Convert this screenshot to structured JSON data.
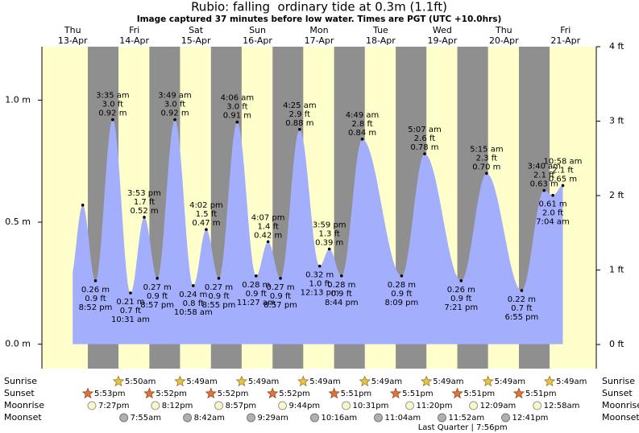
{
  "header": {
    "title": "Rubio: falling  ordinary tide at 0.3m (1.1ft)",
    "subtitle": "Image captured 37 minutes before low water. Times are PGT (UTC +10.0hrs)"
  },
  "chart_data": {
    "type": "tide",
    "ylim": [
      -0.1,
      1.219
    ],
    "yticks": [
      {
        "value": 0,
        "label": "0.0 m"
      },
      {
        "value": 0.5,
        "label": "0.5 m"
      },
      {
        "value": 1,
        "label": "1.0 m"
      }
    ],
    "y2lim": [
      -0.324,
      4.0
    ],
    "y2ticks": [
      {
        "value": 0,
        "label": "0 ft"
      },
      {
        "value": 1,
        "label": "1 ft"
      },
      {
        "value": 2,
        "label": "2 ft"
      },
      {
        "value": 3,
        "label": "3 ft"
      },
      {
        "value": 4,
        "label": "4 ft"
      }
    ],
    "colors": {
      "water": "#a3aefc",
      "day": "#ffffcc",
      "night": "#8f8f8f",
      "day_text": "#e00000"
    },
    "rows": {
      "sunrise": "Sunrise",
      "sunset": "Sunset",
      "moonrise": "Moonrise",
      "moonset": "Moonset"
    },
    "days": [
      {
        "weekday": "Thu",
        "date": "13-Apr",
        "sunrise": null,
        "sunset": "5:53pm",
        "moonrise": "7:27pm",
        "moonset": null,
        "tides": [
          {
            "height": 0.57
          },
          {
            "time": "8:52 pm",
            "height": 0.26,
            "height_label": "0.26 m",
            "feet_label": "0.9 ft"
          }
        ]
      },
      {
        "weekday": "Fri",
        "date": "14-Apr",
        "sunrise": "5:50am",
        "sunset": "5:52pm",
        "moonrise": "8:12pm",
        "moonset": "7:55am",
        "tides": [
          {
            "time": "3:35 am",
            "height": 0.92,
            "height_label": "0.92 m",
            "feet_label": "3.0 ft"
          },
          {
            "time": "10:31 am",
            "height": 0.21,
            "height_label": "0.21 m",
            "feet_label": "0.7 ft"
          },
          {
            "time": "3:53 pm",
            "height": 0.52,
            "height_label": "0.52 m",
            "feet_label": "1.7 ft"
          },
          {
            "time": "8:57 pm",
            "height": 0.27,
            "height_label": "0.27 m",
            "feet_label": "0.9 ft"
          }
        ]
      },
      {
        "weekday": "Sat",
        "date": "15-Apr",
        "sunrise": "5:49am",
        "sunset": "5:52pm",
        "moonrise": "8:57pm",
        "moonset": "8:42am",
        "tides": [
          {
            "time": "3:49 am",
            "height": 0.92,
            "height_label": "0.92 m",
            "feet_label": "3.0 ft"
          },
          {
            "time": "10:58 am",
            "height": 0.24,
            "height_label": "0.24 m",
            "feet_label": "0.8 ft"
          },
          {
            "time": "4:02 pm",
            "height": 0.47,
            "height_label": "0.47 m",
            "feet_label": "1.5 ft"
          },
          {
            "time": "8:55 pm",
            "height": 0.27,
            "height_label": "0.27 m",
            "feet_label": "0.9 ft"
          }
        ]
      },
      {
        "weekday": "Sun",
        "date": "16-Apr",
        "sunrise": "5:49am",
        "sunset": "5:52pm",
        "moonrise": "9:44pm",
        "moonset": "9:29am",
        "tides": [
          {
            "time": "4:06 am",
            "height": 0.91,
            "height_label": "0.91 m",
            "feet_label": "3.0 ft"
          },
          {
            "time": "11:27 am",
            "height": 0.28,
            "height_label": "0.28 m",
            "feet_label": "0.9 ft"
          },
          {
            "time": "4:07 pm",
            "height": 0.42,
            "height_label": "0.42 m",
            "feet_label": "1.4 ft"
          },
          {
            "time": "8:57 pm",
            "height": 0.27,
            "height_label": "0.27 m",
            "feet_label": "0.9 ft"
          }
        ]
      },
      {
        "weekday": "Mon",
        "date": "17-Apr",
        "sunrise": "5:49am",
        "sunset": "5:51pm",
        "moonrise": "10:31pm",
        "moonset": "10:16am",
        "tides": [
          {
            "time": "4:25 am",
            "height": 0.88,
            "height_label": "0.88 m",
            "feet_label": "2.9 ft"
          },
          {
            "time": "12:13 pm",
            "height": 0.32,
            "height_label": "0.32 m",
            "feet_label": "1.0 ft"
          },
          {
            "time": "3:59 pm",
            "height": 0.39,
            "height_label": "0.39 m",
            "feet_label": "1.3 ft"
          },
          {
            "time": "8:44 pm",
            "height": 0.28,
            "height_label": "0.28 m",
            "feet_label": "0.9 ft"
          }
        ]
      },
      {
        "weekday": "Tue",
        "date": "18-Apr",
        "sunrise": "5:49am",
        "sunset": "5:51pm",
        "moonrise": "11:20pm",
        "moonset": "11:04am",
        "tides": [
          {
            "time": "4:49 am",
            "height": 0.84,
            "height_label": "0.84 m",
            "feet_label": "2.8 ft"
          },
          {
            "time": "8:09 pm",
            "height": 0.28,
            "height_label": "0.28 m",
            "feet_label": "0.9 ft"
          }
        ]
      },
      {
        "weekday": "Wed",
        "date": "19-Apr",
        "sunrise": "5:49am",
        "sunset": "5:51pm",
        "moonrise": null,
        "moonset": "11:52am",
        "moon_phase": "Last Quarter | 7:56pm",
        "tides": [
          {
            "time": "5:07 am",
            "height": 0.78,
            "height_label": "0.78 m",
            "feet_label": "2.6 ft"
          },
          {
            "time": "7:21 pm",
            "height": 0.26,
            "height_label": "0.26 m",
            "feet_label": "0.9 ft"
          }
        ]
      },
      {
        "weekday": "Thu",
        "date": "20-Apr",
        "sunrise": "5:49am",
        "sunset": "5:51pm",
        "moonrise": "12:09am",
        "moonset": "12:41pm",
        "tides": [
          {
            "time": "5:15 am",
            "height": 0.7,
            "height_label": "0.70 m",
            "feet_label": "2.3 ft"
          },
          {
            "time": "6:55 pm",
            "height": 0.22,
            "height_label": "0.22 m",
            "feet_label": "0.7 ft"
          }
        ]
      },
      {
        "weekday": "Fri",
        "date": "21-Apr",
        "sunrise": "5:49am",
        "sunset": null,
        "moonrise": "12:58am",
        "moonset": null,
        "tides": [
          {
            "time": "3:40 am",
            "height": 0.63,
            "height_label": "0.63 m",
            "feet_label": "2.1 ft"
          },
          {
            "time": "7:04 am",
            "height": 0.61,
            "height_label": "0.61 m",
            "feet_label": "2.0 ft"
          },
          {
            "time": "10:58 am",
            "height": 0.65,
            "height_label": "0.65 m",
            "feet_label": "2.1 ft"
          }
        ]
      }
    ]
  }
}
